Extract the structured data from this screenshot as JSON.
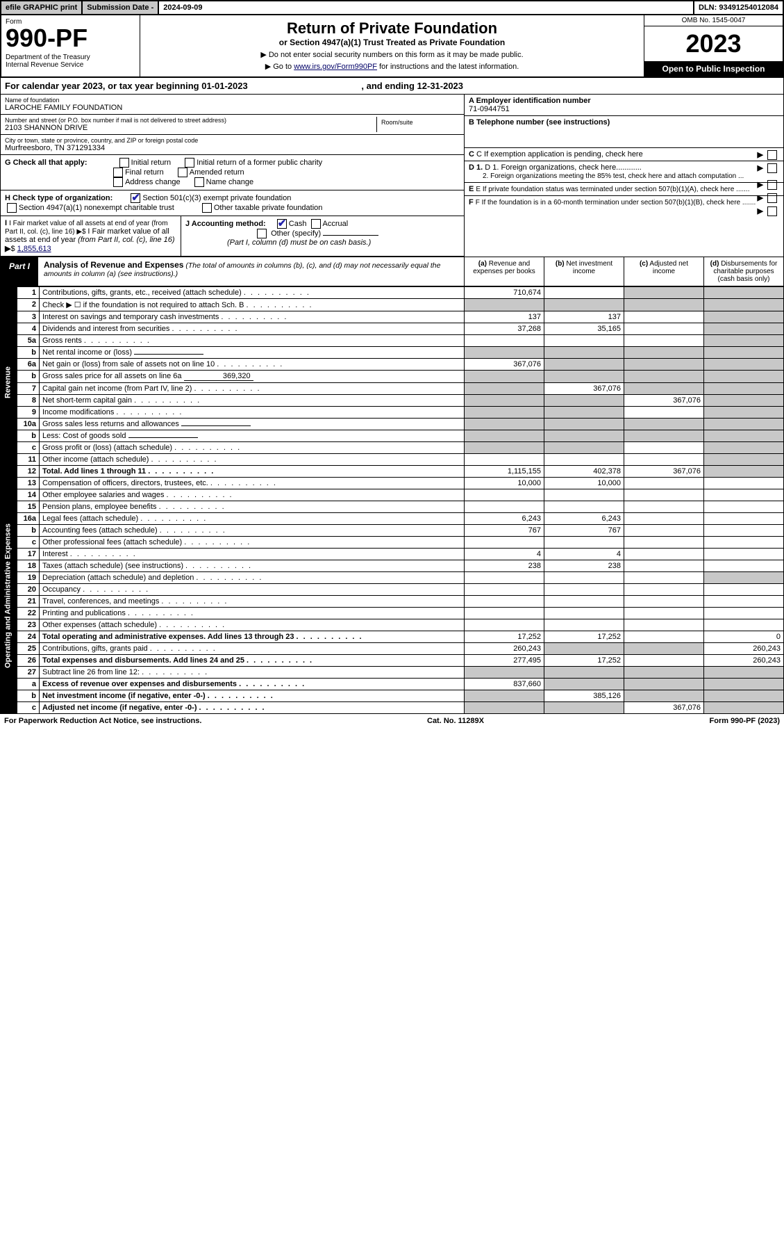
{
  "topbar": {
    "efile": "efile GRAPHIC print",
    "subdate_lbl": "Submission Date - ",
    "subdate_val": "2024-09-09",
    "dln": "DLN: 93491254012084"
  },
  "header": {
    "form_lbl": "Form",
    "form_num": "990-PF",
    "dept": "Department of the Treasury\nInternal Revenue Service",
    "title": "Return of Private Foundation",
    "subtitle": "or Section 4947(a)(1) Trust Treated as Private Foundation",
    "note1": "▶ Do not enter social security numbers on this form as it may be made public.",
    "note2_pre": "▶ Go to ",
    "note2_link": "www.irs.gov/Form990PF",
    "note2_post": " for instructions and the latest information.",
    "omb": "OMB No. 1545-0047",
    "year": "2023",
    "openpub": "Open to Public Inspection"
  },
  "calyear": {
    "text": "For calendar year 2023, or tax year beginning 01-01-2023",
    "ending": ", and ending 12-31-2023"
  },
  "entity": {
    "name_lbl": "Name of foundation",
    "name": "LAROCHE FAMILY FOUNDATION",
    "addr_lbl": "Number and street (or P.O. box number if mail is not delivered to street address)",
    "addr": "2103 SHANNON DRIVE",
    "room_lbl": "Room/suite",
    "city_lbl": "City or town, state or province, country, and ZIP or foreign postal code",
    "city": "Murfreesboro, TN  371291334",
    "A_lbl": "A Employer identification number",
    "A_val": "71-0944751",
    "B_lbl": "B Telephone number (see instructions)",
    "C_lbl": "C If exemption application is pending, check here",
    "D1_lbl": "D 1. Foreign organizations, check here............",
    "D2_lbl": "2. Foreign organizations meeting the 85% test, check here and attach computation ...",
    "E_lbl": "E  If private foundation status was terminated under section 507(b)(1)(A), check here .......",
    "F_lbl": "F  If the foundation is in a 60-month termination under section 507(b)(1)(B), check here .......",
    "G_lbl": "G Check all that apply:",
    "G_opts": [
      "Initial return",
      "Initial return of a former public charity",
      "Final return",
      "Amended return",
      "Address change",
      "Name change"
    ],
    "H_lbl": "H Check type of organization:",
    "H_opts": [
      "Section 501(c)(3) exempt private foundation",
      "Section 4947(a)(1) nonexempt charitable trust",
      "Other taxable private foundation"
    ],
    "I_lbl": "I Fair market value of all assets at end of year (from Part II, col. (c), line 16) ▶$ ",
    "I_val": "1,855,613",
    "J_lbl": "J Accounting method:",
    "J_opts": [
      "Cash",
      "Accrual"
    ],
    "J_other": "Other (specify)",
    "J_note": "(Part I, column (d) must be on cash basis.)"
  },
  "part1": {
    "part": "Part I",
    "title": "Analysis of Revenue and Expenses",
    "note": "(The total of amounts in columns (b), (c), and (d) may not necessarily equal the amounts in column (a) (see instructions).)",
    "col_a": "(a)  Revenue and expenses per books",
    "col_b": "(b)  Net investment income",
    "col_c": "(c)  Adjusted net income",
    "col_d": "(d)  Disbursements for charitable purposes (cash basis only)"
  },
  "sidelabels": {
    "rev": "Revenue",
    "exp": "Operating and Administrative Expenses"
  },
  "rows": [
    {
      "n": "1",
      "d": "Contributions, gifts, grants, etc., received (attach schedule)",
      "a": "710,674",
      "b": "",
      "c": null,
      "dd": null
    },
    {
      "n": "2",
      "d": "Check ▶ ☐ if the foundation is not required to attach Sch. B",
      "a": null,
      "b": null,
      "c": null,
      "dd": null,
      "grey_a": true
    },
    {
      "n": "3",
      "d": "Interest on savings and temporary cash investments",
      "a": "137",
      "b": "137",
      "c": "",
      "dd": null
    },
    {
      "n": "4",
      "d": "Dividends and interest from securities",
      "a": "37,268",
      "b": "35,165",
      "c": "",
      "dd": null
    },
    {
      "n": "5a",
      "d": "Gross rents",
      "a": "",
      "b": "",
      "c": "",
      "dd": null
    },
    {
      "n": "b",
      "d": "Net rental income or (loss)",
      "a": null,
      "b": null,
      "c": null,
      "dd": null,
      "grey_a": true,
      "inline": ""
    },
    {
      "n": "6a",
      "d": "Net gain or (loss) from sale of assets not on line 10",
      "a": "367,076",
      "b": null,
      "c": null,
      "dd": null,
      "grey_b": true,
      "grey_c": true
    },
    {
      "n": "b",
      "d": "Gross sales price for all assets on line 6a",
      "a": null,
      "b": null,
      "c": null,
      "dd": null,
      "grey_a": true,
      "inline": "369,320"
    },
    {
      "n": "7",
      "d": "Capital gain net income (from Part IV, line 2)",
      "a": null,
      "b": "367,076",
      "c": null,
      "dd": null,
      "grey_a": true,
      "grey_c": true
    },
    {
      "n": "8",
      "d": "Net short-term capital gain",
      "a": null,
      "b": null,
      "c": "367,076",
      "dd": null,
      "grey_a": true,
      "grey_b": true
    },
    {
      "n": "9",
      "d": "Income modifications",
      "a": null,
      "b": null,
      "c": "",
      "dd": null,
      "grey_a": true,
      "grey_b": true
    },
    {
      "n": "10a",
      "d": "Gross sales less returns and allowances",
      "a": null,
      "b": null,
      "c": null,
      "dd": null,
      "grey_a": true,
      "inline": ""
    },
    {
      "n": "b",
      "d": "Less: Cost of goods sold",
      "a": null,
      "b": null,
      "c": null,
      "dd": null,
      "grey_a": true,
      "inline": ""
    },
    {
      "n": "c",
      "d": "Gross profit or (loss) (attach schedule)",
      "a": null,
      "b": null,
      "c": "",
      "dd": null,
      "grey_a": true,
      "grey_b": true
    },
    {
      "n": "11",
      "d": "Other income (attach schedule)",
      "a": "",
      "b": "",
      "c": "",
      "dd": null
    },
    {
      "n": "12",
      "d": "Total. Add lines 1 through 11",
      "a": "1,115,155",
      "b": "402,378",
      "c": "367,076",
      "dd": null,
      "bold": true
    },
    {
      "n": "13",
      "d": "Compensation of officers, directors, trustees, etc.",
      "a": "10,000",
      "b": "10,000",
      "c": "",
      "dd": ""
    },
    {
      "n": "14",
      "d": "Other employee salaries and wages",
      "a": "",
      "b": "",
      "c": "",
      "dd": ""
    },
    {
      "n": "15",
      "d": "Pension plans, employee benefits",
      "a": "",
      "b": "",
      "c": "",
      "dd": ""
    },
    {
      "n": "16a",
      "d": "Legal fees (attach schedule)",
      "a": "6,243",
      "b": "6,243",
      "c": "",
      "dd": ""
    },
    {
      "n": "b",
      "d": "Accounting fees (attach schedule)",
      "a": "767",
      "b": "767",
      "c": "",
      "dd": ""
    },
    {
      "n": "c",
      "d": "Other professional fees (attach schedule)",
      "a": "",
      "b": "",
      "c": "",
      "dd": ""
    },
    {
      "n": "17",
      "d": "Interest",
      "a": "4",
      "b": "4",
      "c": "",
      "dd": ""
    },
    {
      "n": "18",
      "d": "Taxes (attach schedule) (see instructions)",
      "a": "238",
      "b": "238",
      "c": "",
      "dd": ""
    },
    {
      "n": "19",
      "d": "Depreciation (attach schedule) and depletion",
      "a": "",
      "b": "",
      "c": "",
      "dd": null,
      "grey_d": true
    },
    {
      "n": "20",
      "d": "Occupancy",
      "a": "",
      "b": "",
      "c": "",
      "dd": ""
    },
    {
      "n": "21",
      "d": "Travel, conferences, and meetings",
      "a": "",
      "b": "",
      "c": "",
      "dd": ""
    },
    {
      "n": "22",
      "d": "Printing and publications",
      "a": "",
      "b": "",
      "c": "",
      "dd": ""
    },
    {
      "n": "23",
      "d": "Other expenses (attach schedule)",
      "a": "",
      "b": "",
      "c": "",
      "dd": ""
    },
    {
      "n": "24",
      "d": "Total operating and administrative expenses. Add lines 13 through 23",
      "a": "17,252",
      "b": "17,252",
      "c": "",
      "dd": "0",
      "bold": true
    },
    {
      "n": "25",
      "d": "Contributions, gifts, grants paid",
      "a": "260,243",
      "b": null,
      "c": null,
      "dd": "260,243",
      "grey_b": true,
      "grey_c": true
    },
    {
      "n": "26",
      "d": "Total expenses and disbursements. Add lines 24 and 25",
      "a": "277,495",
      "b": "17,252",
      "c": "",
      "dd": "260,243",
      "bold": true
    },
    {
      "n": "27",
      "d": "Subtract line 26 from line 12:",
      "a": null,
      "b": null,
      "c": null,
      "dd": null,
      "grey_a": true,
      "grey_b": true,
      "grey_c": true,
      "grey_d": true
    },
    {
      "n": "a",
      "d": "Excess of revenue over expenses and disbursements",
      "a": "837,660",
      "b": null,
      "c": null,
      "dd": null,
      "grey_b": true,
      "grey_c": true,
      "grey_d": true,
      "bold": true
    },
    {
      "n": "b",
      "d": "Net investment income (if negative, enter -0-)",
      "a": null,
      "b": "385,126",
      "c": null,
      "dd": null,
      "grey_a": true,
      "grey_c": true,
      "grey_d": true,
      "bold": true
    },
    {
      "n": "c",
      "d": "Adjusted net income (if negative, enter -0-)",
      "a": null,
      "b": null,
      "c": "367,076",
      "dd": null,
      "grey_a": true,
      "grey_b": true,
      "grey_d": true,
      "bold": true
    }
  ],
  "footer": {
    "left": "For Paperwork Reduction Act Notice, see instructions.",
    "center": "Cat. No. 11289X",
    "right": "Form 990-PF (2023)"
  }
}
